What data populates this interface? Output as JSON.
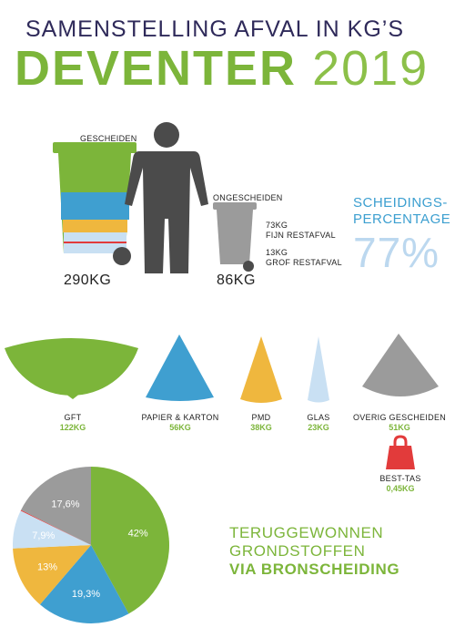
{
  "header": {
    "line1": "SAMENSTELLING AFVAL IN KG’S",
    "city": "DEVENTER",
    "year": "2019"
  },
  "colors": {
    "green": "#7cb53a",
    "blue": "#3f9fd0",
    "yellow": "#efb73e",
    "light_blue": "#c9e0f3",
    "grey": "#9b9b9b",
    "red": "#e23b3b",
    "dark": "#4b4b4b",
    "navy": "#2f2a5a"
  },
  "bins": {
    "separated_label": "GESCHEIDEN",
    "separated_kg": "290KG",
    "unseparated_label": "ONGESCHEIDEN",
    "unseparated_kg": "86KG",
    "fine_kg": "73KG",
    "fine_label": "FIJN RESTAFVAL",
    "coarse_kg": "13KG",
    "coarse_label": "GROF RESTAFVAL"
  },
  "separation": {
    "title_line1": "SCHEIDINGS-",
    "title_line2": "PERCENTAGE",
    "value": "77%"
  },
  "categories": [
    {
      "name": "GFT",
      "kg": "122KG",
      "color": "#7cb53a"
    },
    {
      "name": "PAPIER & KARTON",
      "kg": "56KG",
      "color": "#3f9fd0"
    },
    {
      "name": "PMD",
      "kg": "38KG",
      "color": "#efb73e"
    },
    {
      "name": "GLAS",
      "kg": "23KG",
      "color": "#c9e0f3"
    },
    {
      "name": "OVERIG GESCHEIDEN",
      "kg": "51KG",
      "color": "#9b9b9b"
    }
  ],
  "best_tas": {
    "name": "BEST-TAS",
    "kg": "0,45KG"
  },
  "result": {
    "line1": "TERUGGEWONNEN",
    "line2": "GRONDSTOFFEN",
    "line3": "VIA BRONSCHEIDING"
  },
  "chart_data": {
    "type": "pie",
    "categories": [
      "GFT",
      "PAPIER & KARTON",
      "PMD",
      "GLAS",
      "BEST-TAS",
      "OVERIG GESCHEIDEN"
    ],
    "values": [
      42,
      19.3,
      13,
      7.9,
      0.2,
      17.6
    ],
    "labels": [
      "42%",
      "19,3%",
      "13%",
      "7,9%",
      "",
      "17,6%"
    ],
    "colors": [
      "#7cb53a",
      "#3f9fd0",
      "#efb73e",
      "#c9e0f3",
      "#e23b3b",
      "#9b9b9b"
    ],
    "legend": "none"
  }
}
